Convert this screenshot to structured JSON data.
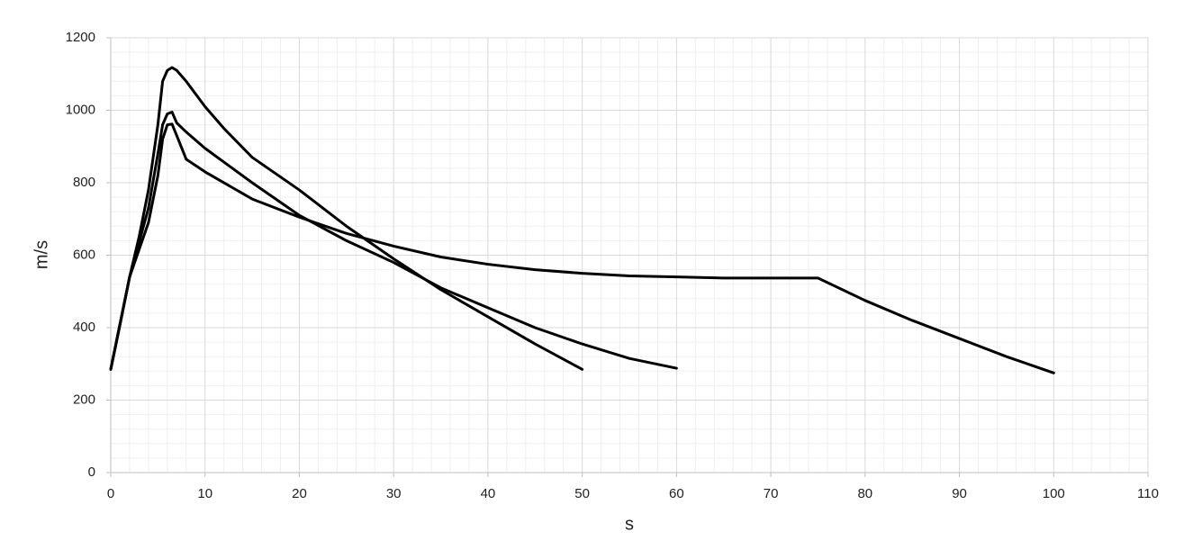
{
  "chart_data": {
    "type": "line",
    "x_label": "s",
    "y_label": "m/s",
    "xlim": [
      0,
      110
    ],
    "xticks": [
      0,
      10,
      20,
      30,
      40,
      50,
      60,
      70,
      80,
      90,
      100,
      110
    ],
    "ylim": [
      0,
      1200
    ],
    "yticks": [
      0,
      200,
      400,
      600,
      800,
      1000,
      1200
    ],
    "grid": true,
    "minor_grid": true,
    "series": [
      {
        "color": "#000000",
        "x": [
          0,
          1,
          2,
          3,
          4,
          5,
          5.5,
          6,
          6.5,
          7,
          8,
          10,
          12,
          15,
          20,
          25,
          30,
          35,
          40,
          45,
          50
        ],
        "values": [
          285,
          410,
          540,
          650,
          780,
          960,
          1080,
          1110,
          1118,
          1110,
          1080,
          1010,
          950,
          870,
          780,
          680,
          590,
          505,
          430,
          355,
          285
        ]
      },
      {
        "color": "#000000",
        "x": [
          0,
          2,
          4,
          5,
          5.5,
          6,
          6.5,
          7,
          8,
          10,
          15,
          20,
          25,
          30,
          35,
          40,
          45,
          50,
          55,
          60
        ],
        "values": [
          285,
          540,
          730,
          880,
          960,
          990,
          995,
          965,
          940,
          895,
          800,
          710,
          640,
          580,
          510,
          455,
          400,
          355,
          315,
          288
        ]
      },
      {
        "color": "#000000",
        "x": [
          0,
          2,
          4,
          5,
          5.5,
          6,
          6.5,
          7,
          8,
          10,
          15,
          20,
          25,
          30,
          35,
          40,
          45,
          50,
          55,
          60,
          65,
          70,
          75,
          80,
          85,
          90,
          95,
          100
        ],
        "values": [
          285,
          540,
          690,
          820,
          920,
          960,
          962,
          930,
          865,
          830,
          755,
          705,
          660,
          625,
          595,
          575,
          560,
          550,
          543,
          540,
          537,
          537,
          537,
          475,
          420,
          370,
          320,
          275
        ]
      }
    ]
  }
}
